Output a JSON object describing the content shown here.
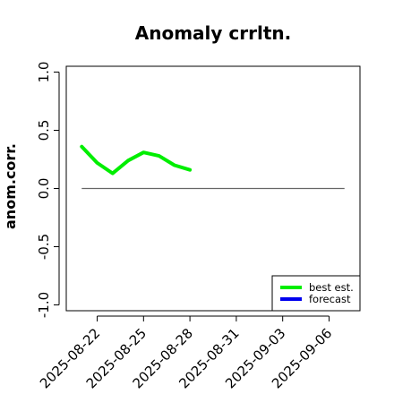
{
  "chart_data": {
    "type": "line",
    "title": "Anomaly crrltn.",
    "ylabel": "anom.corr.",
    "xlabel": "",
    "ylim": [
      -1.05,
      1.05
    ],
    "xlim": [
      "2025-08-20",
      "2025-09-08"
    ],
    "y_ticks": [
      "-1.0",
      "-0.5",
      "0.0",
      "0.5",
      "1.0"
    ],
    "y_tick_values": [
      -1.0,
      -0.5,
      0.0,
      0.5,
      1.0
    ],
    "x_ticks": [
      "2025-08-22",
      "2025-08-25",
      "2025-08-28",
      "2025-08-31",
      "2025-09-03",
      "2025-09-06"
    ],
    "highlighted_x_tick": "2025-08-28",
    "highlight_color": "#228b22",
    "reference_line": {
      "y": 0.0,
      "from": "2025-08-21",
      "to": "2025-09-07",
      "color": "#666666"
    },
    "series": [
      {
        "name": "best est.",
        "color": "#00ee00",
        "points": [
          {
            "x": "2025-08-21",
            "y": 0.36
          },
          {
            "x": "2025-08-22",
            "y": 0.22
          },
          {
            "x": "2025-08-23",
            "y": 0.13
          },
          {
            "x": "2025-08-24",
            "y": 0.24
          },
          {
            "x": "2025-08-25",
            "y": 0.31
          },
          {
            "x": "2025-08-26",
            "y": 0.28
          },
          {
            "x": "2025-08-27",
            "y": 0.2
          },
          {
            "x": "2025-08-28",
            "y": 0.16
          }
        ]
      },
      {
        "name": "forecast",
        "color": "#0000ee",
        "points": []
      }
    ],
    "legend_position": "bottom-right",
    "grid": false
  }
}
